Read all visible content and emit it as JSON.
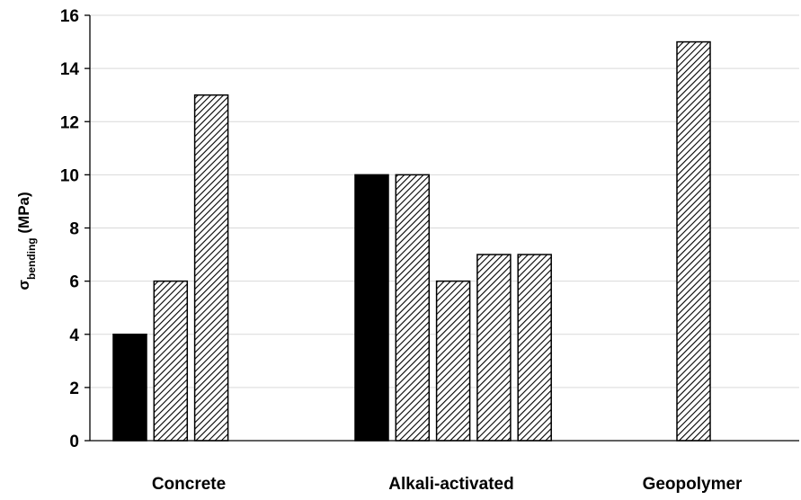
{
  "chart_data": {
    "type": "bar",
    "title": "",
    "ylabel": {
      "symbol": "σ",
      "subscript": "bending",
      "unit": " (MPa)"
    },
    "ylim": [
      0,
      16
    ],
    "yticks": [
      0,
      2,
      4,
      6,
      8,
      10,
      12,
      14,
      16
    ],
    "grid": true,
    "legend": "none",
    "groups": [
      {
        "name": "Concrete",
        "bars": [
          {
            "value": 4,
            "fill": "solid"
          },
          {
            "value": 6,
            "fill": "hatched"
          },
          {
            "value": 13,
            "fill": "hatched"
          }
        ]
      },
      {
        "name": "Alkali-activated",
        "bars": [
          {
            "value": 10,
            "fill": "solid"
          },
          {
            "value": 10,
            "fill": "hatched"
          },
          {
            "value": 6,
            "fill": "hatched"
          },
          {
            "value": 7,
            "fill": "hatched"
          },
          {
            "value": 7,
            "fill": "hatched"
          }
        ]
      },
      {
        "name": "Geopolymer",
        "bars": [
          {
            "value": 15,
            "fill": "hatched"
          }
        ]
      }
    ],
    "colors": {
      "solid": "#000000",
      "hatch_line": "#000000",
      "hatch_bg": "#ffffff",
      "grid": "#d9d9d9",
      "axis": "#000000"
    }
  }
}
